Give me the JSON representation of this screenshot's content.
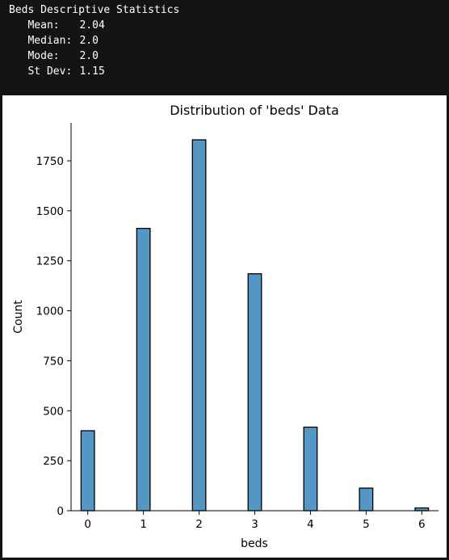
{
  "console": {
    "heading": "Beds Descriptive Statistics",
    "stats": [
      {
        "label": "Mean:",
        "value": "2.04"
      },
      {
        "label": "Median:",
        "value": "2.0"
      },
      {
        "label": "Mode:",
        "value": "2.0"
      },
      {
        "label": "St Dev:",
        "value": "1.15"
      }
    ]
  },
  "chart_data": {
    "type": "bar",
    "title": "Distribution of 'beds' Data",
    "xlabel": "beds",
    "ylabel": "Count",
    "x": [
      0,
      1,
      2,
      3,
      4,
      5,
      6
    ],
    "values": [
      400,
      1412,
      1855,
      1185,
      418,
      113,
      14
    ],
    "xlim": [
      -0.3,
      6.3
    ],
    "ylim": [
      0,
      1940
    ],
    "xticks": [
      0,
      1,
      2,
      3,
      4,
      5,
      6
    ],
    "yticks": [
      0,
      250,
      500,
      750,
      1000,
      1250,
      1500,
      1750
    ],
    "grid": false,
    "legend": "none",
    "bar_color": "#5597c4"
  }
}
